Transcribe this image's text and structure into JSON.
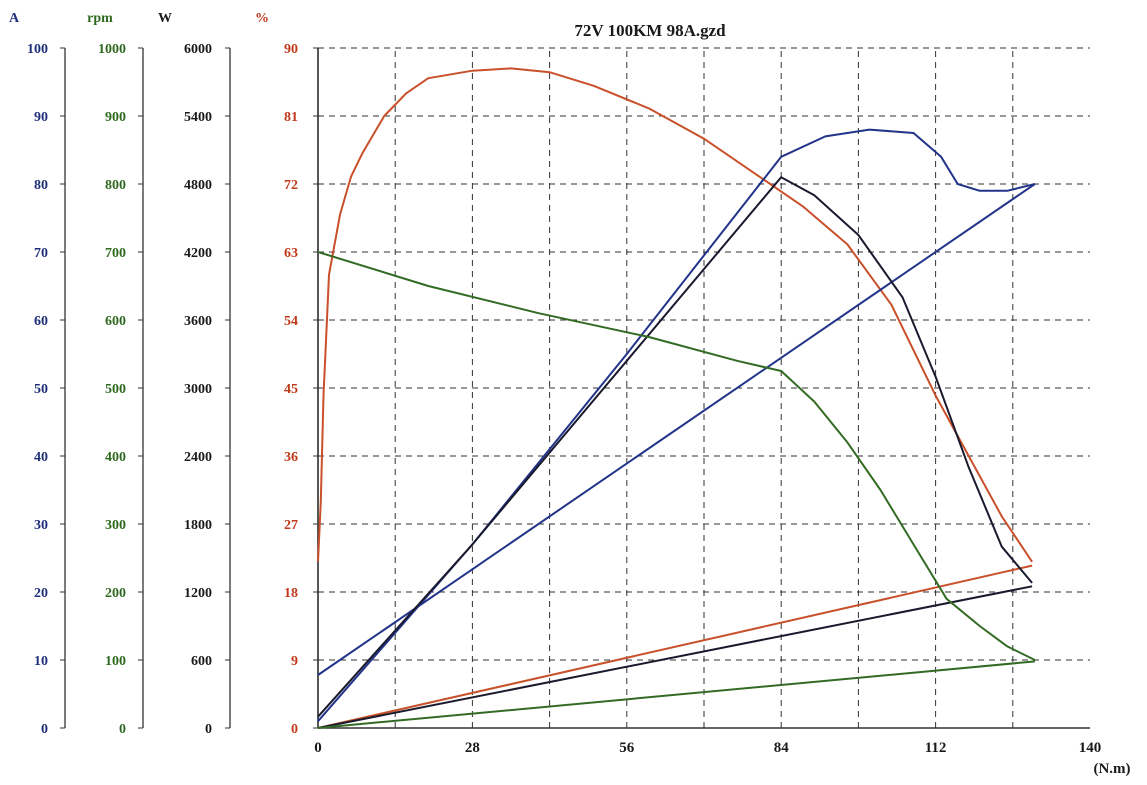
{
  "chart_data": {
    "type": "line",
    "title": "72V 100KM 98A.gzd",
    "xlabel": "(N.m)",
    "x_ticks": [
      "0",
      "28",
      "56",
      "84",
      "112",
      "140"
    ],
    "xlim": [
      0,
      140
    ],
    "grid": true,
    "axes": [
      {
        "id": "A",
        "label": "A",
        "color": "#1f2f7a",
        "ticks": [
          "0",
          "10",
          "20",
          "30",
          "40",
          "50",
          "60",
          "70",
          "80",
          "90",
          "100"
        ],
        "range": [
          0,
          100
        ]
      },
      {
        "id": "rpm",
        "label": "rpm",
        "color": "#2f6b1f",
        "ticks": [
          "0",
          "100",
          "200",
          "300",
          "400",
          "500",
          "600",
          "700",
          "800",
          "900",
          "1000"
        ],
        "range": [
          0,
          1000
        ]
      },
      {
        "id": "W",
        "label": "W",
        "color": "#1a1a1a",
        "ticks": [
          "0",
          "600",
          "1200",
          "1800",
          "2400",
          "3000",
          "3600",
          "4200",
          "4800",
          "5400",
          "6000"
        ],
        "range": [
          0,
          6000
        ]
      },
      {
        "id": "pct",
        "label": "%",
        "color": "#c0391b",
        "ticks": [
          "0",
          "9",
          "18",
          "27",
          "36",
          "45",
          "54",
          "63",
          "72",
          "81",
          "90"
        ],
        "range": [
          0,
          90
        ]
      }
    ],
    "series": [
      {
        "axis": "pct",
        "color": "#c8502a",
        "x": [
          0,
          0.5,
          1,
          2,
          4,
          6,
          8,
          12,
          16,
          20,
          28,
          35,
          42,
          50,
          60,
          70,
          80,
          88,
          96,
          104,
          112,
          118,
          124,
          129.5
        ],
        "y": [
          22,
          30,
          44,
          60,
          68,
          73,
          76,
          81,
          84,
          86,
          87,
          87.3,
          86.8,
          85,
          82,
          78,
          73,
          69,
          64,
          56,
          44,
          36,
          28,
          22
        ]
      },
      {
        "axis": "pct",
        "color": "#c8502a",
        "x": [
          0,
          129.5
        ],
        "y": [
          0,
          21.5
        ]
      },
      {
        "axis": "A",
        "color": "#22348a",
        "x": [
          0,
          28,
          56,
          84,
          92,
          100,
          108,
          113,
          116,
          120,
          125,
          130
        ],
        "y": [
          1,
          27,
          55,
          84,
          87,
          88,
          87.5,
          84,
          80,
          79,
          79,
          80
        ]
      },
      {
        "axis": "A",
        "color": "#22348a",
        "x": [
          0,
          130
        ],
        "y": [
          7.8,
          80
        ]
      },
      {
        "axis": "W",
        "color": "#1a1a2e",
        "x": [
          0,
          28,
          56,
          84,
          90,
          98,
          106,
          112,
          118,
          124,
          129.5
        ],
        "y": [
          100,
          1620,
          3240,
          4860,
          4700,
          4350,
          3800,
          3100,
          2300,
          1600,
          1280
        ]
      },
      {
        "axis": "W",
        "color": "#1a1a2e",
        "x": [
          0,
          129.5
        ],
        "y": [
          0,
          1250
        ]
      },
      {
        "axis": "rpm",
        "color": "#336b24",
        "x": [
          0,
          20,
          40,
          60,
          76,
          84,
          90,
          96,
          102,
          108,
          114,
          120,
          125,
          130
        ],
        "y": [
          700,
          650,
          610,
          575,
          540,
          525,
          480,
          420,
          350,
          270,
          190,
          150,
          120,
          100
        ]
      },
      {
        "axis": "rpm",
        "color": "#336b24",
        "x": [
          0,
          130
        ],
        "y": [
          0,
          98
        ]
      }
    ]
  }
}
